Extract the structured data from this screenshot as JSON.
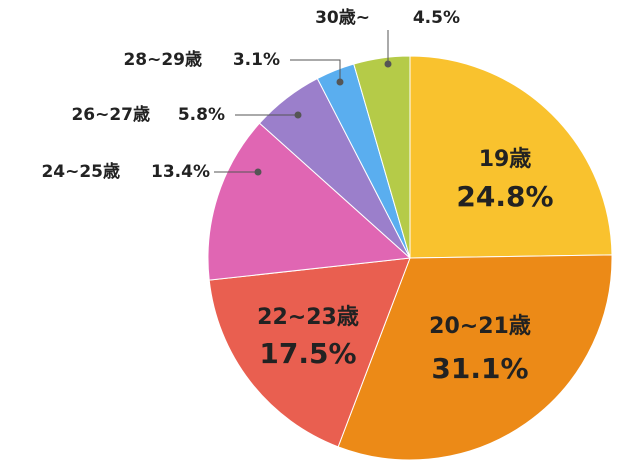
{
  "chart_data": {
    "type": "pie",
    "categories": [
      "19歳",
      "20~21歳",
      "22~23歳",
      "24~25歳",
      "26~27歳",
      "28~29歳",
      "30歳~"
    ],
    "values": [
      24.8,
      31.1,
      17.5,
      13.4,
      5.8,
      3.1,
      4.5
    ],
    "value_labels": [
      "24.8%",
      "31.1%",
      "17.5%",
      "13.4%",
      "5.8%",
      "3.1%",
      "4.5%"
    ],
    "colors": [
      "#f9c22e",
      "#ec8a17",
      "#e95f50",
      "#e066b3",
      "#9b7fcb",
      "#5aaeef",
      "#b5cb48"
    ]
  }
}
